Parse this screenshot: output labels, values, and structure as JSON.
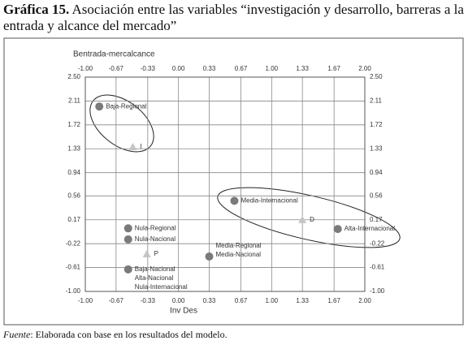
{
  "chart_data": {
    "type": "scatter",
    "title_number": "Gráfica 15.",
    "title": "Asociación entre las variables “investigación y desarrollo, barreras a la entrada y alcance del mercado”",
    "x_label": "Inv Des",
    "y_label": "Bentrada-mercalcance",
    "xlim": [
      -1,
      2
    ],
    "ylim": [
      -1,
      2.5
    ],
    "xticks": [
      {
        "value": -1,
        "label": "-1.00"
      },
      -0.67,
      -0.33,
      {
        "value": 0,
        "label": "0.00"
      },
      0.33,
      0.67,
      {
        "value": 1,
        "label": "1.00"
      },
      1.33,
      1.67,
      {
        "value": 2,
        "label": "2.00"
      }
    ],
    "yticks": [
      {
        "value": -1,
        "label": "-1.00"
      },
      -0.61,
      -0.22,
      0.17,
      0.56,
      0.94,
      1.33,
      1.72,
      2.11,
      {
        "value": 2.5,
        "label": "2.50"
      }
    ],
    "grid": true,
    "series": [
      {
        "marker": "circle",
        "color": "#7a7a7a",
        "x": [
          -0.85,
          0.6,
          1.71,
          -0.54,
          -0.54,
          -0.54,
          0.33
        ],
        "y": [
          2.02,
          0.48,
          0.02,
          0.03,
          -0.15,
          -0.64,
          -0.43
        ],
        "labels": [
          [
            "Baja-Regional"
          ],
          [
            "Media-Internacional"
          ],
          [
            "Alta-Internacional"
          ],
          [
            "Nula-Regional"
          ],
          [
            "Nula-Nacional"
          ],
          [
            "Baja-Nacional",
            "Alta-Nacional",
            "Nula-Internacional"
          ],
          [
            "Media-Regional",
            "Media-Nacional"
          ]
        ]
      },
      {
        "marker": "triangle",
        "color": "#c4c4c4",
        "x": [
          -0.49,
          -0.34,
          1.33
        ],
        "y": [
          1.36,
          -0.39,
          0.17
        ],
        "labels": [
          [
            "I"
          ],
          [
            "P"
          ],
          [
            "D"
          ]
        ]
      }
    ],
    "source_label": "Fuente",
    "source_text": ": Elaborada con base en los resultados del modelo."
  }
}
